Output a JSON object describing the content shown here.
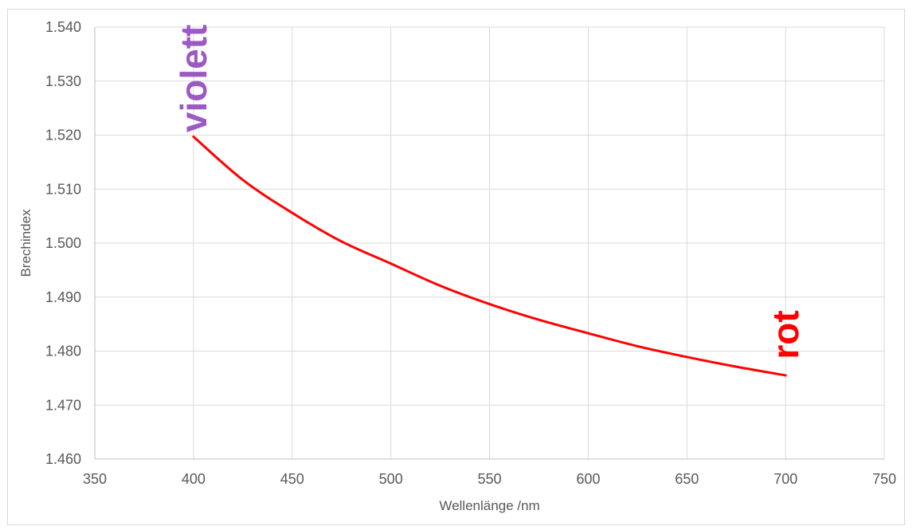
{
  "chart_data": {
    "type": "line",
    "title": "",
    "xlabel": "Wellenlänge /nm",
    "ylabel": "Brechindex",
    "xlim": [
      350,
      750
    ],
    "ylim": [
      1.46,
      1.54
    ],
    "x_ticks": [
      "350",
      "400",
      "450",
      "500",
      "550",
      "600",
      "650",
      "700",
      "750"
    ],
    "y_ticks": [
      "1.460",
      "1.470",
      "1.480",
      "1.490",
      "1.500",
      "1.510",
      "1.520",
      "1.530",
      "1.540"
    ],
    "grid": true,
    "series": [
      {
        "color": "#ff0000",
        "x": [
          400,
          425,
          450,
          475,
          500,
          525,
          550,
          575,
          600,
          625,
          650,
          675,
          700
        ],
        "y": [
          1.5197,
          1.5117,
          1.5056,
          1.5003,
          1.4962,
          1.4921,
          1.4887,
          1.4858,
          1.4833,
          1.4809,
          1.4789,
          1.4771,
          1.4755
        ]
      }
    ],
    "annotations": [
      {
        "text": "violett",
        "x": 400,
        "y": 1.5205,
        "color": "#9b59c6",
        "rotation": -90
      },
      {
        "text": "rot",
        "x": 700,
        "y": 1.4785,
        "color": "#ff0000",
        "rotation": -90
      }
    ]
  }
}
